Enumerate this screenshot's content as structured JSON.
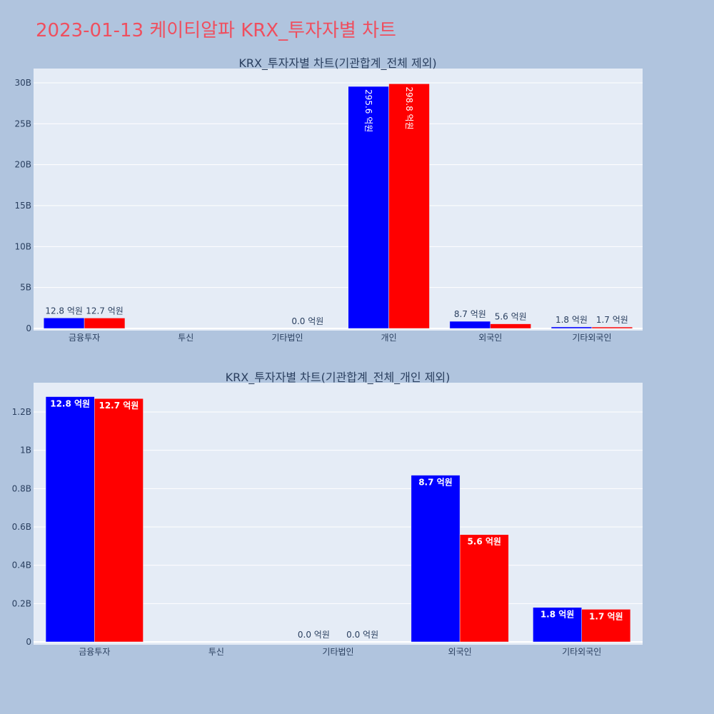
{
  "title": "2023-01-13 케이티알파 KRX_투자자별 차트",
  "colors": {
    "series1": "#0000ff",
    "series2": "#ff0000",
    "plot_bg": "#e5ecf6",
    "grid": "#ffffff",
    "text": "#2a3f5f"
  },
  "chart_data": [
    {
      "type": "bar",
      "title": "KRX_투자자별 차트(기관합계_전체 제외)",
      "categories": [
        "금융투자",
        "투신",
        "기타법인",
        "개인",
        "외국인",
        "기타외국인"
      ],
      "ylim": [
        0,
        31.2
      ],
      "yticks": [
        0,
        5,
        10,
        15,
        20,
        25,
        30
      ],
      "ytick_labels": [
        "0",
        "5B",
        "10B",
        "15B",
        "20B",
        "25B",
        "30B"
      ],
      "unit": "B",
      "grid": true,
      "series": [
        {
          "name": "series1",
          "values": [
            1.28,
            null,
            0,
            29.56,
            0.87,
            0.18
          ],
          "labels": [
            "12.8 억원",
            null,
            null,
            "295.6 억원",
            "8.7 억원",
            "1.8 억원"
          ]
        },
        {
          "name": "series2",
          "values": [
            1.27,
            null,
            0,
            29.88,
            0.56,
            0.17
          ],
          "labels": [
            "12.7 억원",
            null,
            "0.0 억원",
            "298.8 억원",
            "5.6 억원",
            "1.7 억원"
          ]
        }
      ]
    },
    {
      "type": "bar",
      "title": "KRX_투자자별 차트(기관합계_전체_개인 제외)",
      "categories": [
        "금융투자",
        "투신",
        "기타법인",
        "외국인",
        "기타외국인"
      ],
      "ylim": [
        0,
        1.36
      ],
      "yticks": [
        0,
        0.2,
        0.4,
        0.6,
        0.8,
        1,
        1.2
      ],
      "ytick_labels": [
        "0",
        "0.2B",
        "0.4B",
        "0.6B",
        "0.8B",
        "1B",
        "1.2B"
      ],
      "unit": "B",
      "grid": true,
      "series": [
        {
          "name": "series1",
          "values": [
            1.28,
            null,
            0,
            0.87,
            0.18
          ],
          "labels": [
            "12.8 억원",
            null,
            "0.0 억원",
            "8.7 억원",
            "1.8 억원"
          ]
        },
        {
          "name": "series2",
          "values": [
            1.27,
            null,
            0,
            0.56,
            0.17
          ],
          "labels": [
            "12.7 억원",
            null,
            "0.0 억원",
            "5.6 억원",
            "1.7 억원"
          ]
        }
      ]
    }
  ]
}
